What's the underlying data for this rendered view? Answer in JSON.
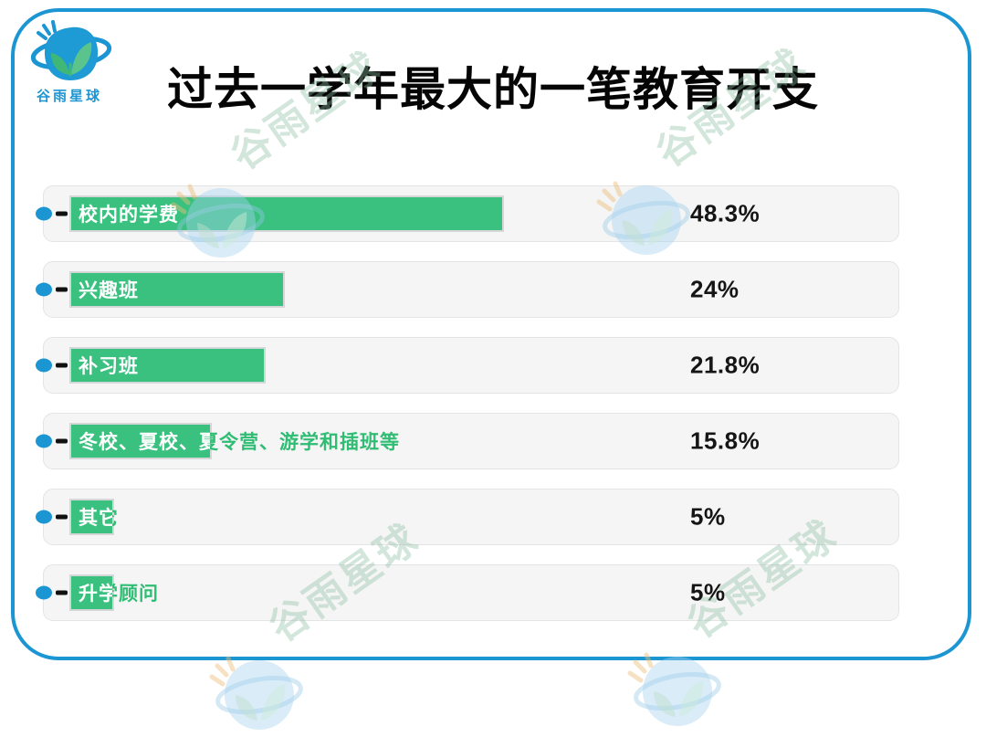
{
  "brand": {
    "logo_text": "谷雨星球",
    "logo_icon": "planet-sprout-icon",
    "blue": "#1b96d3",
    "bar_green": "#3ac180",
    "overflow_green": "#2ebd72"
  },
  "title": "过去一学年最大的一笔教育开支",
  "watermark": {
    "text": "谷雨星球"
  },
  "chart_data": {
    "type": "bar",
    "orientation": "horizontal",
    "title": "过去一学年最大的一笔教育开支",
    "unit": "%",
    "axis_range": [
      0,
      100
    ],
    "grid": false,
    "legend": false,
    "categories": [
      "校内的学费",
      "兴趣班",
      "补习班",
      "冬校、夏校、夏令营、游学和插班等",
      "其它",
      "升学顾问"
    ],
    "values": [
      48.3,
      24,
      21.8,
      15.8,
      5,
      5
    ],
    "value_labels": [
      "48.3%",
      "24%",
      "21.8%",
      "15.8%",
      "5%",
      "5%"
    ],
    "bar_color": "#3ac180"
  }
}
